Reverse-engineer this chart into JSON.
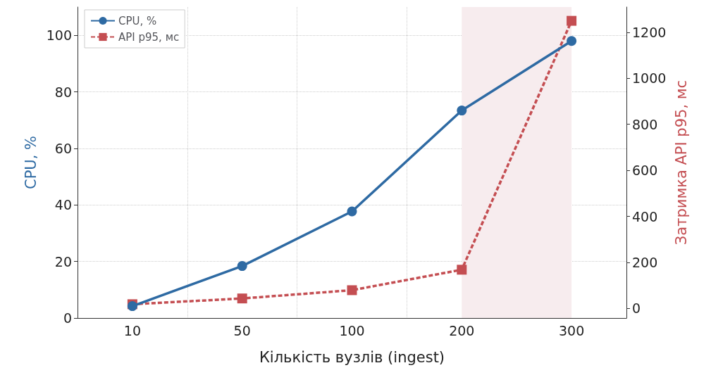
{
  "chart_data": {
    "type": "line",
    "xlabel": "Кількість вузлів (ingest)",
    "ylabel": "CPU, %",
    "y2label": "Затримка API p95, мс",
    "categories": [
      "10",
      "50",
      "100",
      "200",
      "300"
    ],
    "series": [
      {
        "name": "CPU, %",
        "color": "#2e6aa3",
        "values": [
          4.2,
          18.4,
          37.7,
          73.4,
          98
        ],
        "marker": "circle",
        "line_style": "solid"
      },
      {
        "name": "API p95, мс",
        "color": "#c44e52",
        "values": [
          18,
          43,
          79,
          168,
          1250
        ],
        "axis": "y2",
        "marker": "square",
        "line_style": "dashed"
      }
    ],
    "ylim": [
      0,
      110
    ],
    "yticks": [
      0,
      20,
      40,
      60,
      80,
      100
    ],
    "y2lim": [
      -42,
      1310
    ],
    "y2ticks": [
      0,
      200,
      400,
      600,
      800,
      1000,
      1200
    ],
    "bands": [
      {
        "axis": "x",
        "from": "200",
        "to": "300",
        "color": "#f7ecee"
      }
    ],
    "grid": true,
    "legend": "top left"
  }
}
